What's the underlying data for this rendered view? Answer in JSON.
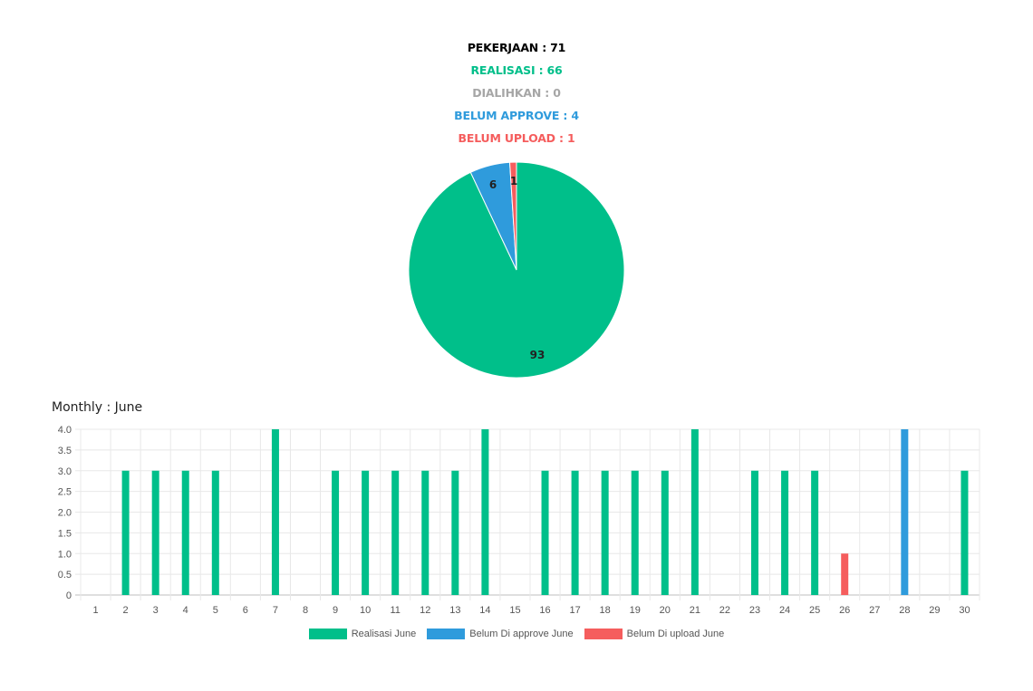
{
  "summary": {
    "pekerjaan": "PEKERJAAN : 71",
    "realisasi": "REALISASI : 66",
    "dialihkan": "DIALIHKAN : 0",
    "belum_approve": "BELUM APPROVE : 4",
    "belum_upload": "BELUM UPLOAD : 1"
  },
  "colors": {
    "black": "#000000",
    "green": "#00bf8a",
    "gray": "#a6a6a6",
    "blue": "#2f9bdc",
    "red": "#f55d5d"
  },
  "monthly_title": "Monthly : June",
  "chart_data": [
    {
      "type": "pie",
      "slices": [
        {
          "label": "93",
          "value": 93,
          "color": "#00bf8a"
        },
        {
          "label": "6",
          "value": 6,
          "color": "#2f9bdc"
        },
        {
          "label": "1",
          "value": 1,
          "color": "#f55d5d"
        }
      ]
    },
    {
      "type": "bar",
      "title": "Monthly : June",
      "categories": [
        "1",
        "2",
        "3",
        "4",
        "5",
        "6",
        "7",
        "8",
        "9",
        "10",
        "11",
        "12",
        "13",
        "14",
        "15",
        "16",
        "17",
        "18",
        "19",
        "20",
        "21",
        "22",
        "23",
        "24",
        "25",
        "26",
        "27",
        "28",
        "29",
        "30"
      ],
      "ylim": [
        0,
        4
      ],
      "yticks": [
        "0",
        "0.5",
        "1.0",
        "1.5",
        "2.0",
        "2.5",
        "3.0",
        "3.5",
        "4.0"
      ],
      "grid": true,
      "legend_position": "bottom",
      "series": [
        {
          "name": "Realisasi June",
          "color": "#00bf8a",
          "values": [
            0,
            3,
            3,
            3,
            3,
            0,
            4,
            0,
            3,
            3,
            3,
            3,
            3,
            4,
            0,
            3,
            3,
            3,
            3,
            3,
            4,
            0,
            3,
            3,
            3,
            0,
            0,
            0,
            0,
            3
          ]
        },
        {
          "name": "Belum Di approve June",
          "color": "#2f9bdc",
          "values": [
            0,
            0,
            0,
            0,
            0,
            0,
            0,
            0,
            0,
            0,
            0,
            0,
            0,
            0,
            0,
            0,
            0,
            0,
            0,
            0,
            0,
            0,
            0,
            0,
            0,
            0,
            0,
            4,
            0,
            0
          ]
        },
        {
          "name": "Belum Di upload June",
          "color": "#f55d5d",
          "values": [
            0,
            0,
            0,
            0,
            0,
            0,
            0,
            0,
            0,
            0,
            0,
            0,
            0,
            0,
            0,
            0,
            0,
            0,
            0,
            0,
            0,
            0,
            0,
            0,
            0,
            1,
            0,
            0,
            0,
            0
          ]
        }
      ]
    }
  ]
}
